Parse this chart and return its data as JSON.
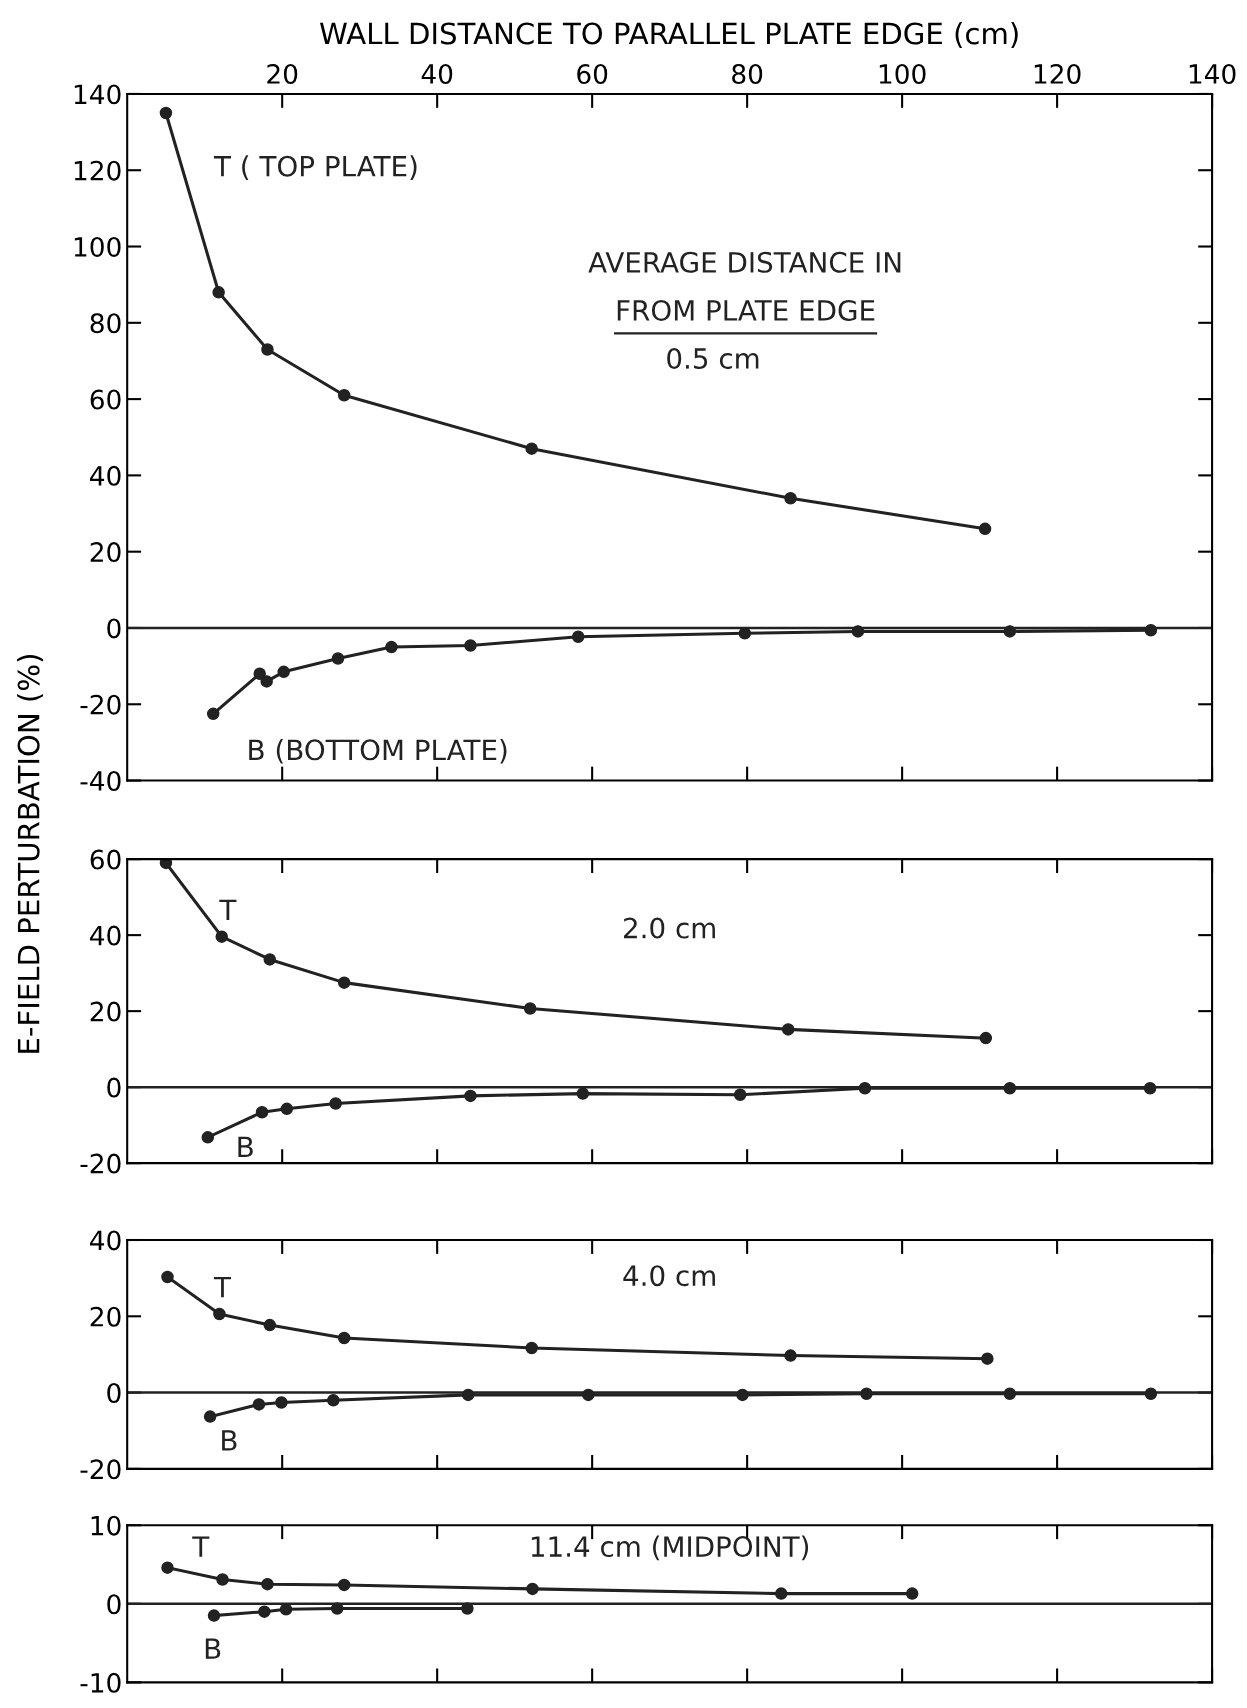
{
  "chart_data": [
    {
      "type": "line",
      "xlabel": "WALL DISTANCE TO PARALLEL PLATE EDGE (cm)",
      "ylabel": "E-FIELD PERTURBATION (%)",
      "xlim": [
        0,
        140
      ],
      "xticks": [
        20,
        40,
        60,
        80,
        100,
        120,
        140
      ],
      "ylim": [
        -40,
        140
      ],
      "yticks": [
        -40,
        -20,
        0,
        20,
        40,
        60,
        80,
        100,
        120,
        140
      ],
      "marker": "circle",
      "grid": false,
      "legend": false,
      "ref_lines": [
        {
          "axis": "y",
          "value": 0,
          "color": "#222222"
        }
      ],
      "annotations": [
        "AVERAGE DISTANCE IN",
        "FROM PLATE EDGE",
        "0.5 cm"
      ],
      "series": [
        {
          "name": "T ( TOP PLATE)",
          "color": "#222222",
          "x": [
            5,
            11.8,
            18.1,
            28,
            52.2,
            85.6,
            110.7
          ],
          "values": [
            135,
            88,
            73,
            61,
            47,
            34,
            26
          ]
        },
        {
          "name": "B (BOTTOM PLATE)",
          "color": "#222222",
          "x": [
            11.1,
            17.1,
            18,
            20.2,
            27.2,
            34.1,
            44.3,
            58.2,
            79.7,
            94.3,
            113.9,
            132.1
          ],
          "values": [
            -22.5,
            -12,
            -14,
            -11.5,
            -8,
            -5,
            -4.6,
            -2.3,
            -1.4,
            -0.9,
            -0.9,
            -0.6
          ]
        }
      ]
    },
    {
      "type": "line",
      "xlim": [
        0,
        140
      ],
      "xticks": [
        20,
        40,
        60,
        80,
        100,
        120,
        140
      ],
      "ylim": [
        -20,
        60
      ],
      "yticks": [
        -20,
        0,
        20,
        40,
        60
      ],
      "marker": "circle",
      "grid": false,
      "legend": false,
      "tick_labels": "y",
      "ref_lines": [
        {
          "axis": "y",
          "value": 0,
          "color": "#222222"
        }
      ],
      "annotations": [
        "2.0 cm"
      ],
      "series": [
        {
          "name": "T",
          "color": "#222222",
          "x": [
            5,
            12.2,
            18.4,
            28,
            52,
            85.3,
            110.8
          ],
          "values": [
            59,
            39.6,
            33.6,
            27.5,
            20.7,
            15.2,
            12.9
          ]
        },
        {
          "name": "B",
          "color": "#222222",
          "x": [
            10.4,
            17.4,
            20.6,
            26.9,
            44.3,
            58.8,
            79.1,
            95.2,
            113.9,
            132
          ],
          "values": [
            -13.2,
            -6.6,
            -5.7,
            -4.3,
            -2.3,
            -1.7,
            -2,
            -0.3,
            -0.3,
            -0.3
          ]
        }
      ]
    },
    {
      "type": "line",
      "xlim": [
        0,
        140
      ],
      "xticks": [
        20,
        40,
        60,
        80,
        100,
        120,
        140
      ],
      "ylim": [
        -20,
        40
      ],
      "yticks": [
        -20,
        0,
        20,
        40
      ],
      "marker": "circle",
      "grid": false,
      "legend": false,
      "tick_labels": "y",
      "ref_lines": [
        {
          "axis": "y",
          "value": 0,
          "color": "#222222"
        }
      ],
      "annotations": [
        "4.0 cm"
      ],
      "series": [
        {
          "name": "T",
          "color": "#222222",
          "x": [
            5.2,
            11.9,
            18.4,
            28,
            52.2,
            85.6,
            111
          ],
          "values": [
            30.3,
            20.6,
            17.7,
            14.3,
            11.7,
            9.7,
            8.9
          ]
        },
        {
          "name": "B",
          "color": "#222222",
          "x": [
            10.7,
            17,
            19.9,
            26.6,
            44,
            59.5,
            79.4,
            95.4,
            113.9,
            132.1
          ],
          "values": [
            -6.3,
            -3.1,
            -2.6,
            -2,
            -0.6,
            -0.6,
            -0.6,
            -0.3,
            -0.3,
            -0.3
          ]
        }
      ]
    },
    {
      "type": "line",
      "xlim": [
        0,
        140
      ],
      "xticks": [
        20,
        40,
        60,
        80,
        100,
        120,
        140
      ],
      "ylim": [
        -10,
        10
      ],
      "yticks": [
        -10,
        0,
        10
      ],
      "marker": "circle",
      "grid": false,
      "legend": false,
      "tick_labels": "y",
      "ref_lines": [
        {
          "axis": "y",
          "value": 0,
          "color": "#222222"
        }
      ],
      "annotations": [
        "11.4 cm (MIDPOINT)"
      ],
      "series": [
        {
          "name": "T",
          "color": "#222222",
          "x": [
            5.2,
            12.3,
            18.1,
            28,
            52.3,
            84.4,
            101.3
          ],
          "values": [
            4.6,
            3.1,
            2.5,
            2.4,
            1.9,
            1.3,
            1.3
          ]
        },
        {
          "name": "B",
          "color": "#222222",
          "x": [
            11.2,
            17.7,
            20.5,
            27.1,
            43.9
          ],
          "values": [
            -1.5,
            -1,
            -0.7,
            -0.6,
            -0.6
          ]
        }
      ]
    }
  ]
}
